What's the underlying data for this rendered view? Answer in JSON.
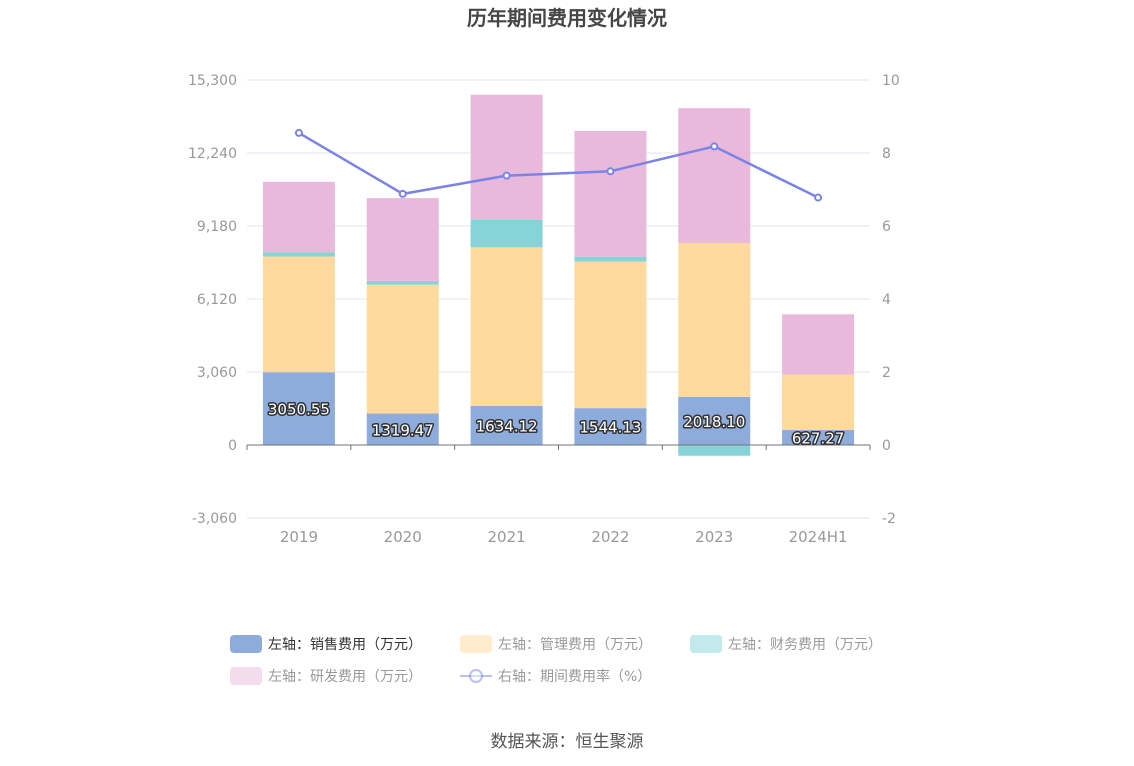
{
  "chart_data": {
    "type": "bar",
    "title": "历年期间费用变化情况",
    "categories": [
      "2019",
      "2020",
      "2021",
      "2022",
      "2023",
      "2024H1"
    ],
    "stacked": true,
    "series": [
      {
        "name": "左轴：销售费用（万元）",
        "axis": "left",
        "type": "bar",
        "color": "#8eacdb",
        "values": [
          3050.55,
          1319.47,
          1634.12,
          1544.13,
          2018.1,
          627.27
        ],
        "labels": [
          "3050.55",
          "1319.47",
          "1634.12",
          "1544.13",
          "2018.10",
          "627.27"
        ]
      },
      {
        "name": "左轴：管理费用（万元）",
        "axis": "left",
        "type": "bar",
        "color": "#ffd99d",
        "values": [
          4850,
          5400,
          6650,
          6150,
          6450,
          2320
        ]
      },
      {
        "name": "左轴：财务费用（万元）",
        "axis": "left",
        "type": "bar",
        "color": "#86d4d8",
        "values": [
          180,
          160,
          1150,
          200,
          -450,
          0
        ]
      },
      {
        "name": "左轴：研发费用（万元）",
        "axis": "left",
        "type": "bar",
        "color": "#e8b9da",
        "values": [
          2950,
          3470,
          5250,
          5270,
          5650,
          2530
        ]
      },
      {
        "name": "右轴：期间费用率（%）",
        "axis": "right",
        "type": "line",
        "color": "#7b83e6",
        "values": [
          8.55,
          6.88,
          7.38,
          7.5,
          8.18,
          6.78
        ]
      }
    ],
    "y_left": {
      "min": -3060,
      "max": 15300,
      "ticks": [
        "-3,060",
        "0",
        "3,060",
        "6,120",
        "9,180",
        "12,240",
        "15,300"
      ],
      "tick_values": [
        -3060,
        0,
        3060,
        6120,
        9180,
        12240,
        15300
      ]
    },
    "y_right": {
      "min": -2,
      "max": 10,
      "ticks": [
        "-2",
        "0",
        "2",
        "4",
        "6",
        "8",
        "10"
      ],
      "tick_values": [
        -2,
        0,
        2,
        4,
        6,
        8,
        10
      ]
    },
    "grid": true,
    "legend": "bottom"
  },
  "footer": {
    "source": "数据来源：恒生聚源"
  }
}
